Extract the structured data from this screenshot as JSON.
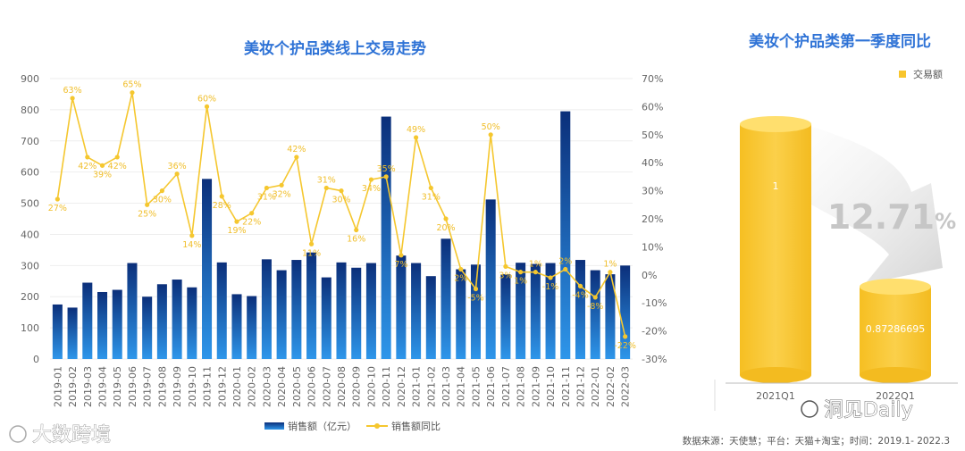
{
  "chart_data": [
    {
      "type": "bar+line",
      "title": "美妆个护品类线上交易走势",
      "categories": [
        "2019-01",
        "2019-02",
        "2019-03",
        "2019-04",
        "2019-05",
        "2019-06",
        "2019-07",
        "2019-08",
        "2019-09",
        "2019-10",
        "2019-11",
        "2019-12",
        "2020-01",
        "2020-02",
        "2020-03",
        "2020-04",
        "2020-05",
        "2020-06",
        "2020-07",
        "2020-08",
        "2020-09",
        "2020-10",
        "2020-11",
        "2020-12",
        "2021-01",
        "2021-02",
        "2021-03",
        "2021-04",
        "2021-05",
        "2021-06",
        "2021-07",
        "2021-08",
        "2021-09",
        "2021-10",
        "2021-11",
        "2021-12",
        "2022-01",
        "2022-02",
        "2022-03"
      ],
      "series": [
        {
          "name": "销售额（亿元）",
          "type": "bar",
          "axis": "left",
          "values": [
            175,
            165,
            245,
            215,
            222,
            308,
            200,
            240,
            255,
            230,
            578,
            310,
            208,
            202,
            320,
            285,
            318,
            342,
            262,
            310,
            293,
            308,
            778,
            332,
            308,
            266,
            386,
            288,
            303,
            512,
            272,
            309,
            305,
            308,
            795,
            318,
            285,
            272,
            300
          ]
        },
        {
          "name": "销售额同比",
          "type": "line",
          "axis": "right",
          "values": [
            27,
            63,
            42,
            39,
            42,
            65,
            25,
            30,
            36,
            14,
            60,
            28,
            19,
            22,
            31,
            32,
            42,
            11,
            31,
            30,
            16,
            34,
            35,
            7,
            49,
            31,
            20,
            2,
            -5,
            50,
            3,
            1,
            1,
            -1,
            2,
            -4,
            -8,
            1,
            -22
          ],
          "labels": [
            "27%",
            "63%",
            "42%",
            "39%",
            "42%",
            "65%",
            "25%",
            "30%",
            "36%",
            "14%",
            "60%",
            "28%",
            "19%",
            "22%",
            "31%",
            "32%",
            "42%",
            "11%",
            "31%",
            "30%",
            "16%",
            "34%",
            "35%",
            "7%",
            "49%",
            "31%",
            "20%",
            "2%",
            "-5%",
            "50%",
            "3%",
            "1%",
            "1%",
            "-1%",
            "2%",
            "-4%",
            "-8%",
            "1%",
            "-22%"
          ]
        }
      ],
      "y_left": {
        "min": 0,
        "max": 900,
        "ticks": [
          "0",
          "100",
          "200",
          "300",
          "400",
          "500",
          "600",
          "700",
          "800",
          "900"
        ]
      },
      "y_right": {
        "min": -30,
        "max": 70,
        "ticks": [
          "-30%",
          "-20%",
          "-10%",
          "0%",
          "10%",
          "20%",
          "30%",
          "40%",
          "50%",
          "60%",
          "70%"
        ]
      },
      "legend": [
        "销售额（亿元）",
        "销售额同比"
      ],
      "legend_position": "bottom"
    },
    {
      "type": "bar",
      "title": "美妆个护品类第一季度同比",
      "categories": [
        "2021Q1",
        "2022Q1"
      ],
      "values": [
        1,
        0.87286695
      ],
      "value_labels": [
        "1",
        "0.87286695"
      ],
      "legend": [
        "交易额"
      ],
      "legend_position": "top-right",
      "annotation": {
        "number": "12.71",
        "unit": "%"
      }
    }
  ],
  "footer": {
    "source": "数据来源：天使慧；平台：天猫+淘宝；时间：2019.1- 2022.3"
  },
  "watermarks": {
    "left": "大数跨境",
    "right": "洞见Daily"
  },
  "colors": {
    "bar_dark": "#0d3a8c",
    "bar_light": "#2a8de6",
    "line": "#f5c72f",
    "cylinder": "#f8c52d",
    "title": "#2f73d6"
  }
}
